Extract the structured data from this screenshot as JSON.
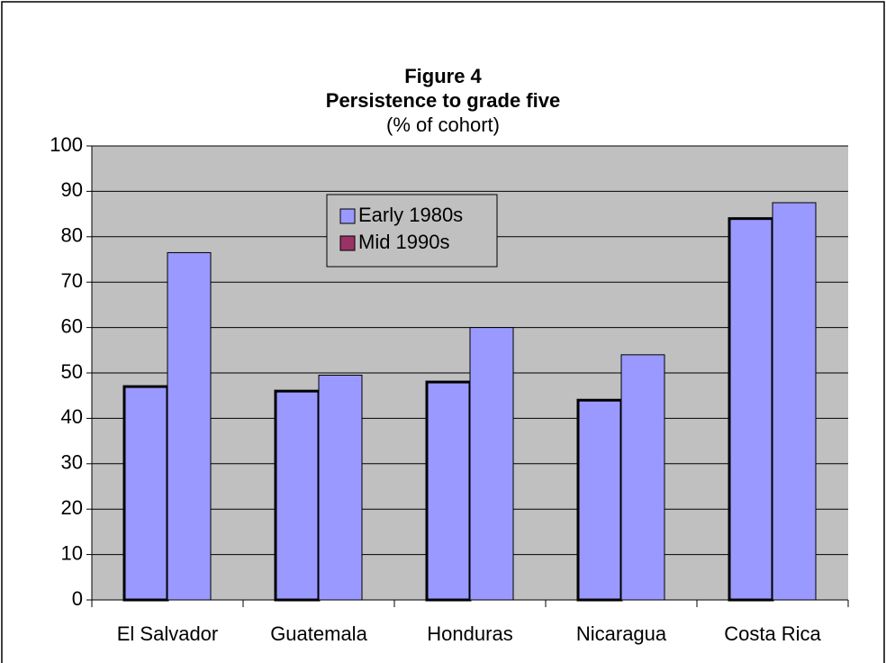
{
  "chart_data": {
    "type": "bar",
    "title": "Figure 4",
    "subtitle": "Persistence to grade five",
    "unit_note": "(% of cohort)",
    "categories": [
      "El Salvador",
      "Guatemala",
      "Honduras",
      "Nicaragua",
      "Costa Rica"
    ],
    "series": [
      {
        "name": "Early 1980s",
        "color": "#9999ff",
        "values": [
          47,
          46,
          48,
          44,
          84
        ]
      },
      {
        "name": "Mid 1990s",
        "color": "#993366",
        "bar_color": "#9999ff",
        "values": [
          76.5,
          49.5,
          60,
          54,
          87.5
        ]
      }
    ],
    "ylim": [
      0,
      100
    ],
    "yticks": [
      0,
      10,
      20,
      30,
      40,
      50,
      60,
      70,
      80,
      90,
      100
    ],
    "grid": true,
    "legend": "inside-top"
  }
}
